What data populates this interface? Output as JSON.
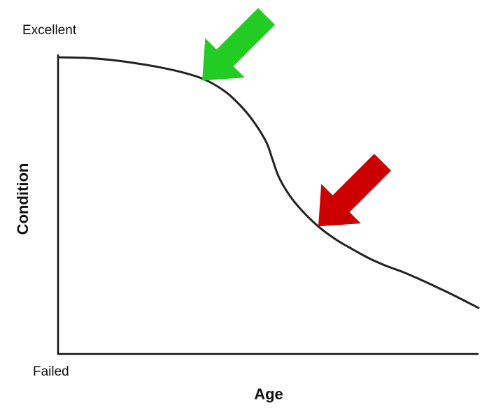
{
  "chart_data": {
    "type": "line",
    "title": "",
    "xlabel": "Age",
    "ylabel": "Condition",
    "y_tick_labels": {
      "top": "Excellent",
      "bottom": "Failed"
    },
    "xlim": [
      0,
      100
    ],
    "ylim": [
      0,
      100
    ],
    "grid": false,
    "series": [
      {
        "color": "#222222",
        "points": [
          [
            0,
            100
          ],
          [
            6,
            99.8
          ],
          [
            12,
            99.1
          ],
          [
            18,
            97.9
          ],
          [
            24,
            96.3
          ],
          [
            30,
            94.2
          ],
          [
            35,
            91.6
          ],
          [
            40,
            86.9
          ],
          [
            44,
            80.9
          ],
          [
            47,
            74.9
          ],
          [
            49.6,
            68.1
          ],
          [
            51,
            61.9
          ],
          [
            52.5,
            55.4
          ],
          [
            55,
            48.6
          ],
          [
            58,
            42.8
          ],
          [
            61.9,
            36.9
          ],
          [
            66,
            32.1
          ],
          [
            70,
            28.4
          ],
          [
            74,
            25.0
          ],
          [
            78,
            22.2
          ],
          [
            82,
            19.9
          ],
          [
            86,
            17.2
          ],
          [
            90,
            14.3
          ],
          [
            94,
            11.3
          ],
          [
            100,
            6.5
          ]
        ]
      }
    ],
    "annotations": [
      {
        "type": "arrow",
        "color": "#22cc22",
        "target": [
          34.3,
          91.3
        ]
      },
      {
        "type": "arrow",
        "color": "#cc0000",
        "target": [
          61.9,
          36.9
        ]
      }
    ]
  }
}
